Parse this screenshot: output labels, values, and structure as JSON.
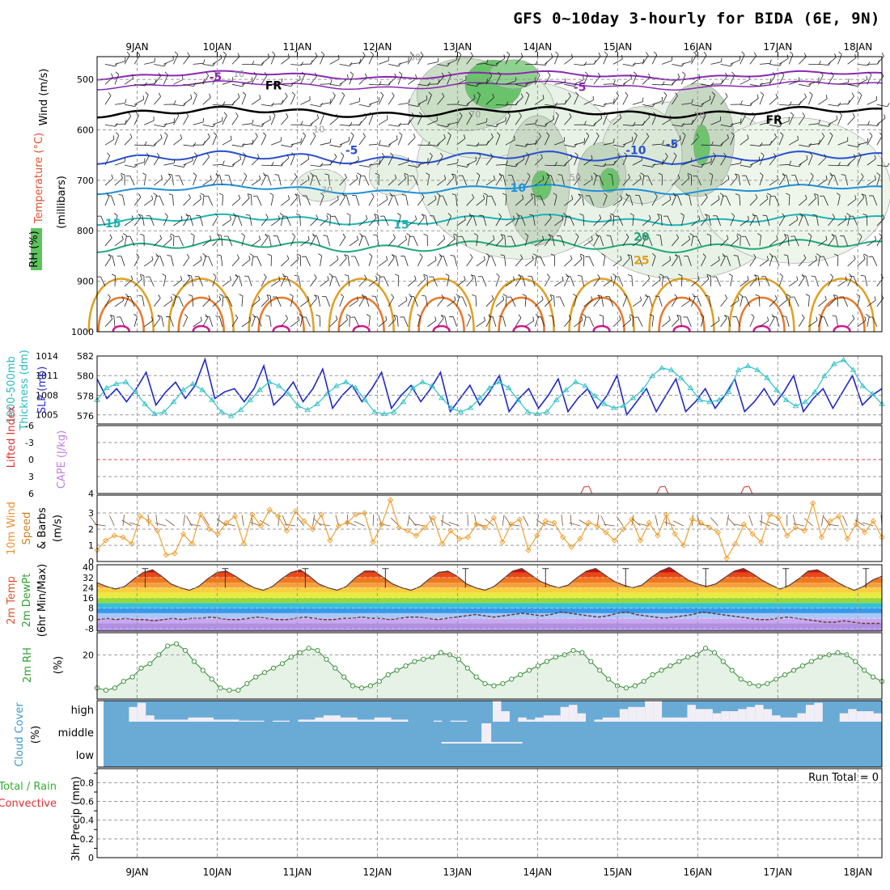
{
  "title": "GFS 0~10day 3-hourly for BIDA (6E, 9N)",
  "chart_data": [
    {
      "panel": "upper-air",
      "type": "heatmap",
      "x_dates": [
        "9JAN",
        "10JAN",
        "11JAN",
        "12JAN",
        "13JAN",
        "14JAN",
        "15JAN",
        "16JAN",
        "17JAN",
        "18JAN"
      ],
      "ylabel": [
        "RH (%)",
        "Temperature (°C)",
        "Wind (m/s)",
        "(millibars)"
      ],
      "y_ticks": [
        "500",
        "600",
        "700",
        "800",
        "900",
        "1000"
      ],
      "isotherm_labels": [
        "-5",
        "FR",
        "-5",
        "-10",
        "15",
        "15",
        "20",
        "25",
        "-5",
        "FR",
        "-10",
        "-5"
      ],
      "rh_labels": [
        "30",
        "10",
        "10",
        "30",
        "50",
        "70",
        "70"
      ]
    },
    {
      "panel": "thickness-slp",
      "type": "line",
      "ylabel_left": "1000-500mb Thickness (dm)",
      "ylabel_right": "SLP (mb)",
      "left_ticks": [
        "582",
        "580",
        "578",
        "576"
      ],
      "right_ticks": [
        "1014",
        "1011",
        "1008",
        "1005"
      ],
      "series": [
        {
          "name": "SLP (mb)",
          "color": "#1e28c8",
          "values": [
            1010.5,
            1007.5,
            1009,
            1007,
            1009,
            1011.5,
            1006.5,
            1008.5,
            1010,
            1007.5,
            1009.5,
            1013.5,
            1007.5,
            1008.5,
            1009,
            1007,
            1009,
            1012.5,
            1006.5,
            1008,
            1010,
            1007,
            1009,
            1012,
            1006,
            1008,
            1009.5,
            1007,
            1009,
            1011.5,
            1006,
            1008,
            1009.5,
            1007,
            1009,
            1011.5,
            1005.5,
            1007.5,
            1009.5,
            1006.5,
            1008.5,
            1011,
            1005.5,
            1007.5,
            1009,
            1006,
            1008,
            1010.5,
            1005.5,
            1007.5,
            1009,
            1006,
            1008,
            1011,
            1005,
            1007,
            1009,
            1005.5,
            1008,
            1010.5,
            1005.5,
            1007,
            1009,
            1006,
            1008,
            1010.5,
            1005.5,
            1007,
            1009,
            1006.5,
            1008.5,
            1011,
            1005.5,
            1007.5,
            1009,
            1006,
            1008.5,
            1011,
            1006.5,
            1008,
            1009
          ]
        },
        {
          "name": "Thickness (dm)",
          "color": "#30c0c8",
          "values": [
            577.6,
            578.8,
            579.2,
            579.4,
            578.4,
            577.2,
            576.2,
            576.4,
            577.4,
            578.6,
            579.2,
            578.6,
            577.6,
            576.4,
            576,
            576.6,
            577.6,
            578.6,
            579.4,
            579,
            578.2,
            577,
            576.6,
            577.2,
            578.2,
            579,
            579.4,
            578.8,
            577.6,
            576.4,
            576.2,
            576.4,
            577.4,
            578.8,
            579.4,
            579,
            577.8,
            576.8,
            576.4,
            576.8,
            577.8,
            578.8,
            579.4,
            578.8,
            577.6,
            576.4,
            576.2,
            576.4,
            577.6,
            578.6,
            579.4,
            579,
            578,
            577.2,
            576.8,
            577,
            577.8,
            578.6,
            580,
            580.8,
            580.6,
            579.8,
            578.8,
            577.6,
            577.4,
            577.6,
            578.4,
            580.6,
            581,
            580.6,
            579.8,
            578.6,
            577.6,
            577,
            577.4,
            578.4,
            580,
            581.2,
            581.6,
            580.6,
            579,
            578.2,
            577.2
          ]
        }
      ]
    },
    {
      "panel": "stability",
      "type": "line",
      "ylabel_left": "Lifted Index",
      "ylabel_right": "CAPE (J/kg)",
      "left_ticks": [
        "-6",
        "-3",
        "0",
        "3",
        "6"
      ],
      "right_ticks": [
        "4"
      ],
      "cape_bumps_day": [
        14.6,
        15.55,
        16.6
      ]
    },
    {
      "panel": "wind10m",
      "type": "line",
      "ylabel": [
        "10m Wind",
        "Speed",
        "& Barbs",
        "(m/s)"
      ],
      "y_ticks": [
        "0",
        "1",
        "2",
        "3"
      ],
      "series": [
        {
          "name": "10m Wind Speed",
          "color": "#f0a030",
          "values": [
            0.7,
            1.3,
            1.6,
            1.5,
            1.1,
            2.8,
            2.5,
            1.9,
            0.4,
            0.5,
            1.7,
            1.1,
            2.9,
            2,
            1.7,
            2.4,
            2.8,
            1.1,
            2.9,
            2.2,
            3.2,
            2.8,
            1.9,
            3.1,
            2.5,
            2,
            2.9,
            1.3,
            2.2,
            2.4,
            2.9,
            3,
            1.2,
            2.3,
            3.8,
            2.1,
            1.9,
            1.6,
            2.1,
            2.7,
            1.1,
            1.9,
            1.4,
            1.5,
            2.3,
            2.1,
            2.7,
            1.2,
            2.3,
            2.6,
            0.7,
            1.6,
            2.5,
            2.4,
            1.5,
            0.9,
            1.4,
            2.4,
            2.2,
            1.8,
            1.3,
            2,
            2.6,
            1.3,
            2.4,
            1.6,
            2.9,
            1.7,
            1,
            2.6,
            2.4,
            2.1,
            1.8,
            0.2,
            1.1,
            2.3,
            1.7,
            1.2,
            2.9,
            2.7,
            1.6,
            2.1,
            1.9,
            3.6,
            1.5,
            2.5,
            2.8,
            1.4,
            2.3,
            1.8,
            2.5,
            1.5
          ]
        }
      ]
    },
    {
      "panel": "temperature2m",
      "type": "area",
      "ylabel": [
        "2m Temp",
        "2m DewPt",
        "(6hr Min/Max)"
      ],
      "y_ticks": [
        "40",
        "32",
        "24",
        "16",
        "8",
        "0",
        "-8"
      ],
      "series": [
        {
          "name": "2m Temp",
          "values": [
            28,
            25,
            23,
            25,
            31,
            36,
            38,
            33,
            27,
            24,
            22,
            25,
            31,
            36,
            37,
            33,
            28,
            24,
            22,
            25,
            31,
            36,
            38,
            33,
            27,
            24,
            22,
            25,
            32,
            37,
            37,
            32,
            27,
            24,
            22,
            25,
            31,
            36,
            37,
            33,
            27,
            24,
            22,
            25,
            31,
            37,
            39,
            34,
            29,
            26,
            24,
            26,
            32,
            37,
            39,
            34,
            29,
            26,
            24,
            26,
            32,
            37,
            40,
            35,
            30,
            27,
            25,
            27,
            32,
            37,
            39,
            35,
            30,
            26,
            23,
            26,
            31,
            37,
            38,
            34,
            29,
            25,
            22,
            25,
            30,
            33
          ]
        },
        {
          "name": "2m DewPt",
          "values": [
            -1,
            0,
            -1,
            0,
            -1,
            -1,
            -2,
            -1,
            0,
            -1,
            0,
            0,
            1,
            0,
            -1,
            -1,
            0,
            1,
            0,
            -1,
            -1,
            0,
            1,
            0,
            -1,
            -1,
            0,
            0,
            1,
            0,
            0,
            -1,
            0,
            1,
            1,
            0,
            -1,
            0,
            1,
            2,
            3,
            2,
            1,
            2,
            3,
            4,
            3,
            2,
            3,
            5,
            4,
            3,
            2,
            1,
            2,
            4,
            5,
            3,
            2,
            1,
            0,
            1,
            2,
            3,
            5,
            4,
            3,
            2,
            1,
            0,
            -1,
            -1,
            0,
            1,
            0,
            -1,
            -2,
            -3,
            -3,
            -2,
            -3,
            -4,
            -4,
            -4
          ]
        }
      ]
    },
    {
      "panel": "rh2m",
      "type": "area",
      "ylabel": [
        "2m RH",
        "(%)"
      ],
      "y_ticks": [
        "20"
      ],
      "series": [
        {
          "name": "2m RH",
          "values": [
            5,
            4,
            5,
            8,
            10,
            14,
            16,
            20,
            24,
            25,
            22,
            17,
            13,
            9,
            5,
            4,
            4,
            7,
            10,
            12,
            14,
            16,
            19,
            21,
            23,
            22,
            18,
            14,
            10,
            6,
            5,
            6,
            8,
            11,
            13,
            15,
            17,
            18,
            19,
            21,
            20,
            18,
            14,
            10,
            7,
            6,
            7,
            9,
            11,
            13,
            15,
            17,
            19,
            20,
            22,
            21,
            17,
            13,
            9,
            6,
            5,
            6,
            8,
            11,
            13,
            15,
            17,
            19,
            20,
            23,
            21,
            17,
            13,
            9,
            7,
            6,
            7,
            9,
            11,
            13,
            15,
            17,
            19,
            20,
            21,
            20,
            17,
            13,
            10,
            8
          ]
        }
      ]
    },
    {
      "panel": "cloud",
      "type": "heatmap",
      "ylabel": [
        "Cloud Cover",
        "(%)"
      ],
      "rows": [
        "high",
        "middle",
        "low"
      ],
      "high_values": [
        0,
        0,
        0,
        70,
        90,
        30,
        10,
        10,
        10,
        10,
        20,
        20,
        20,
        10,
        10,
        10,
        5,
        5,
        5,
        0,
        5,
        5,
        0,
        10,
        10,
        20,
        30,
        30,
        20,
        20,
        10,
        10,
        20,
        20,
        10,
        10,
        0,
        0,
        0,
        5,
        0,
        5,
        5,
        0,
        0,
        0,
        100,
        50,
        0,
        20,
        10,
        20,
        30,
        30,
        70,
        80,
        40,
        0,
        10,
        20,
        20,
        60,
        70,
        70,
        100,
        100,
        20,
        20,
        20,
        80,
        60,
        60,
        40,
        50,
        50,
        60,
        70,
        80,
        60,
        30,
        20,
        20,
        40,
        80,
        90,
        0,
        0,
        40,
        60,
        50,
        50,
        40
      ]
    },
    {
      "panel": "precip",
      "type": "bar",
      "ylabel_left": [
        "Total / Rain",
        "Convective"
      ],
      "ylabel_right": "3hr Precip (mm)",
      "y_ticks": [
        "0.8",
        "0.6",
        "0.4",
        "0.2",
        "0"
      ],
      "run_total": "Run Total = 0",
      "values": []
    }
  ],
  "labels": {
    "wind_ms": "Wind (m/s)",
    "millibars": "(millibars)",
    "thickness_top": "1000-500mb",
    "thickness_bot": "Thickness (dm)",
    "slp": "SLP (mb)",
    "lifted": "Lifted Index",
    "cape": "CAPE (J/kg)",
    "cloud_cover": "Cloud Cover",
    "pct": "(%)",
    "precip_total": "Total / Rain",
    "precip_conv": "Convective",
    "precip_axis": "3hr Precip (mm)",
    "run_total": "Run Total = 0",
    "rh_pct": "RH (%)",
    "temperature": "Temperature",
    "deg_c": "(°C)"
  },
  "colors": {
    "slp": "#1e28c8",
    "thickness": "#30c0c8",
    "wind_speed": "#f0a030",
    "rh_line": "#2d8a2d",
    "rh_fill": "#e6f2e6",
    "cloud": "#6aabd6",
    "precip_label": "#30b030",
    "convective_label": "#e03030"
  }
}
